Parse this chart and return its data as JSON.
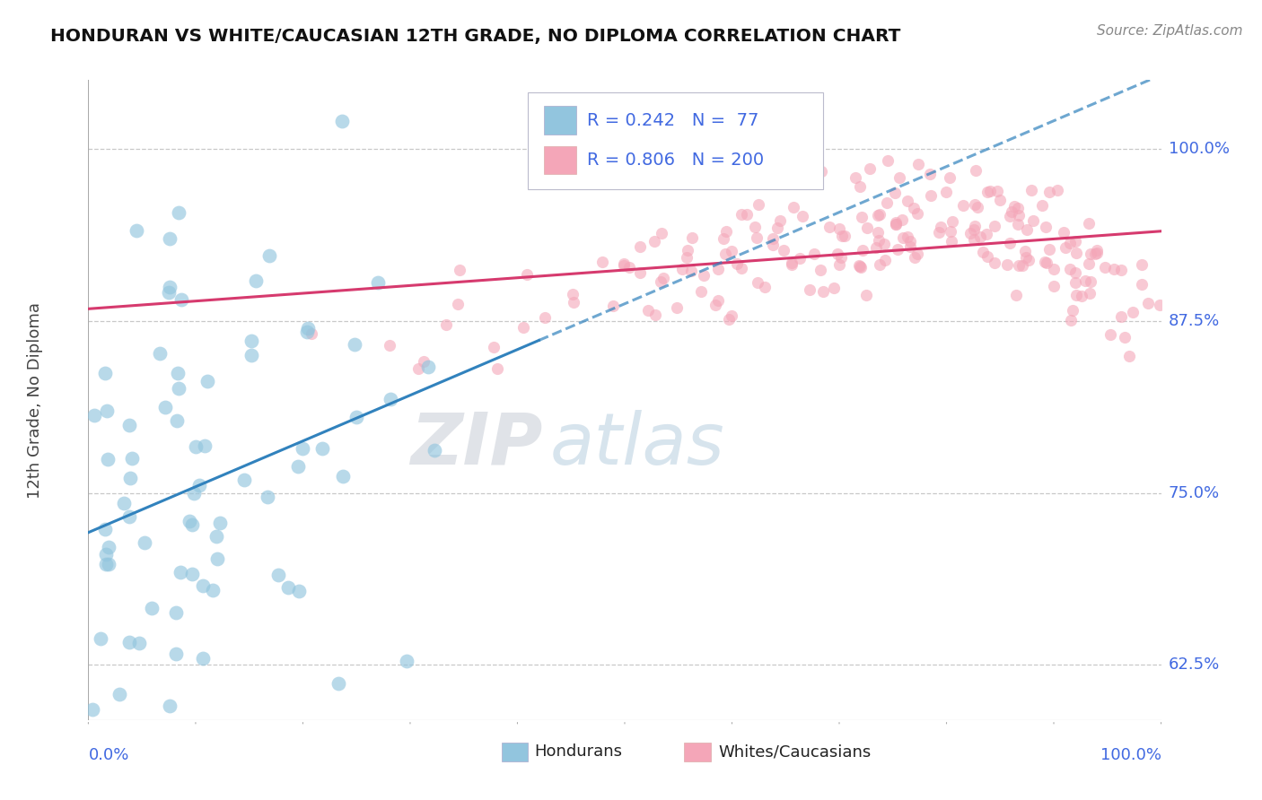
{
  "title": "HONDURAN VS WHITE/CAUCASIAN 12TH GRADE, NO DIPLOMA CORRELATION CHART",
  "source": "Source: ZipAtlas.com",
  "ylabel": "12th Grade, No Diploma",
  "xlabel_bottom_left": "0.0%",
  "xlabel_bottom_right": "100.0%",
  "legend": {
    "blue_label": "Hondurans",
    "pink_label": "Whites/Caucasians",
    "blue_R": "R = 0.242",
    "blue_N": "N =  77",
    "pink_R": "R = 0.806",
    "pink_N": "N = 200"
  },
  "ytick_labels": [
    "62.5%",
    "75.0%",
    "87.5%",
    "100.0%"
  ],
  "ytick_values": [
    0.625,
    0.75,
    0.875,
    1.0
  ],
  "watermark_zip": "ZIP",
  "watermark_atlas": "atlas",
  "blue_color": "#92c5de",
  "blue_fill_color": "#92c5de",
  "blue_line_color": "#3182bd",
  "pink_color": "#f4a6b8",
  "pink_fill_color": "#f4a6b8",
  "pink_line_color": "#d63a6e",
  "axis_label_color": "#4169E1",
  "background_color": "#ffffff",
  "grid_color": "#c8c8c8",
  "legend_box_color": "#e8e8f0",
  "source_color": "#888888",
  "ylabel_color": "#444444",
  "title_color": "#111111"
}
